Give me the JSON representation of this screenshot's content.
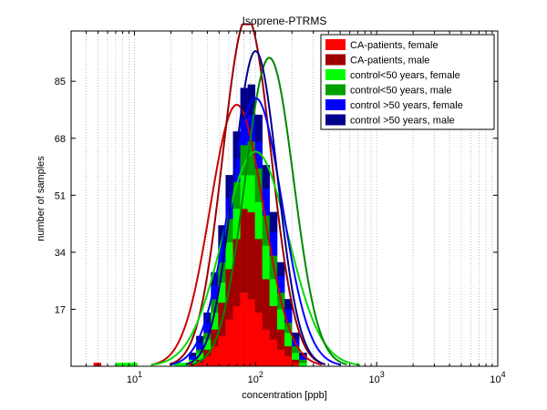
{
  "chart_data": {
    "type": "bar",
    "title": "Isoprene-PTRMS",
    "xlabel": "concentration [ppb]",
    "ylabel": "number of samples",
    "x_scale": "log",
    "xlim": [
      3,
      10000
    ],
    "ylim": [
      0,
      100
    ],
    "grid": "x-major-and-minor, dotted",
    "legend_position": "top-right",
    "x_ticks": [
      {
        "value": 10,
        "base": "10",
        "exp": "1"
      },
      {
        "value": 100,
        "base": "10",
        "exp": "2"
      },
      {
        "value": 1000,
        "base": "10",
        "exp": "3"
      },
      {
        "value": 10000,
        "base": "10",
        "exp": "4"
      }
    ],
    "y_ticks": [
      {
        "value": 17,
        "label": "17"
      },
      {
        "value": 34,
        "label": "34"
      },
      {
        "value": 51,
        "label": "51"
      },
      {
        "value": 68,
        "label": "68"
      },
      {
        "value": 85,
        "label": "85"
      }
    ],
    "bin_edges": [
      4,
      4.6,
      5.3,
      6.1,
      7,
      8,
      9.2,
      10.6,
      12.2,
      14,
      16.1,
      18.5,
      21.3,
      24.5,
      28.2,
      32.4,
      37.3,
      42.9,
      49.3,
      56.7,
      65.2,
      75,
      86.3,
      99.2,
      114,
      131,
      151,
      174,
      200,
      230,
      265,
      305
    ],
    "series": [
      {
        "name": "CA-patients, female",
        "color": "#ff0000",
        "counts": [
          0,
          1,
          0,
          0,
          0,
          0,
          0,
          0,
          0,
          0,
          0,
          0,
          0,
          0,
          1,
          1,
          3,
          6,
          9,
          14,
          18,
          22,
          20,
          16,
          11,
          8,
          5,
          3,
          1,
          0,
          0
        ]
      },
      {
        "name": "CA-patients, male",
        "color": "#a00000",
        "counts": [
          0,
          0,
          0,
          0,
          0,
          0,
          0,
          0,
          0,
          0,
          0,
          0,
          0,
          0,
          0,
          1,
          2,
          5,
          10,
          15,
          20,
          25,
          26,
          22,
          15,
          10,
          6,
          3,
          1,
          0,
          0
        ]
      },
      {
        "name": "control<50 years, female",
        "color": "#00ff00",
        "counts": [
          0,
          0,
          0,
          0,
          1,
          1,
          1,
          0,
          0,
          0,
          0,
          0,
          1,
          1,
          1,
          2,
          3,
          5,
          6,
          8,
          9,
          10,
          11,
          11,
          10,
          8,
          6,
          4,
          2,
          1,
          0
        ]
      },
      {
        "name": "control<50 years, male",
        "color": "#00a000",
        "counts": [
          0,
          0,
          0,
          0,
          0,
          0,
          0,
          0,
          0,
          0,
          0,
          0,
          0,
          0,
          0,
          1,
          2,
          4,
          6,
          7,
          8,
          9,
          10,
          10,
          9,
          7,
          5,
          3,
          2,
          1,
          0
        ]
      },
      {
        "name": "control >50 years, female",
        "color": "#0000ff",
        "counts": [
          0,
          0,
          0,
          0,
          0,
          0,
          0,
          0,
          0,
          0,
          0,
          0,
          0,
          0,
          1,
          2,
          3,
          4,
          5,
          6,
          7,
          8,
          8,
          8,
          8,
          7,
          5,
          4,
          2,
          1,
          0
        ]
      },
      {
        "name": "control >50 years, male",
        "color": "#00008b",
        "counts": [
          0,
          0,
          0,
          0,
          0,
          0,
          0,
          0,
          0,
          0,
          0,
          0,
          0,
          0,
          1,
          2,
          3,
          4,
          6,
          7,
          8,
          9,
          9,
          8,
          7,
          6,
          4,
          3,
          2,
          1,
          0
        ]
      }
    ],
    "fits": [
      {
        "color": "#cc0000",
        "peak": 78,
        "center": 70,
        "sigma": 0.22
      },
      {
        "color": "#990000",
        "peak": 104,
        "center": 85,
        "sigma": 0.2
      },
      {
        "color": "#00dd00",
        "peak": 64,
        "center": 100,
        "sigma": 0.27
      },
      {
        "color": "#008800",
        "peak": 92,
        "center": 130,
        "sigma": 0.2
      },
      {
        "color": "#0000ff",
        "peak": 80,
        "center": 100,
        "sigma": 0.22
      },
      {
        "color": "#00008b",
        "peak": 94,
        "center": 100,
        "sigma": 0.18
      }
    ]
  }
}
